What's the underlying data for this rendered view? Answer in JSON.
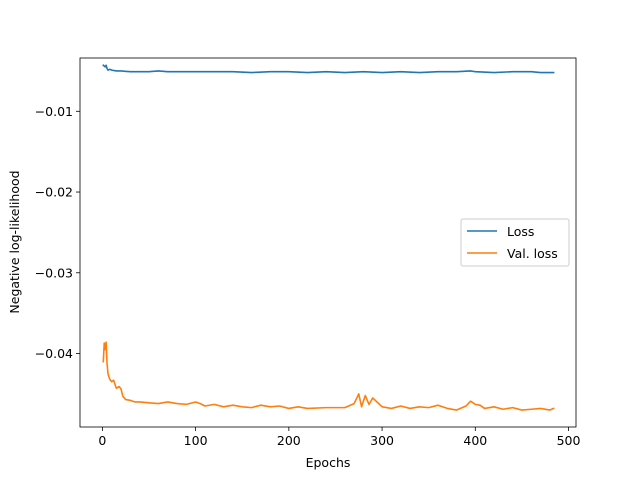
{
  "chart_data": {
    "type": "line",
    "title": "",
    "xlabel": "Epochs",
    "ylabel": "Negative log-likelihood",
    "xlim": [
      -24,
      508
    ],
    "ylim": [
      -0.0491,
      -0.0034
    ],
    "x_ticks": [
      0,
      100,
      200,
      300,
      400,
      500
    ],
    "x_tick_labels": [
      "0",
      "100",
      "200",
      "300",
      "400",
      "500"
    ],
    "y_ticks": [
      -0.01,
      -0.02,
      -0.03,
      -0.04
    ],
    "y_tick_labels": [
      "−0.01",
      "−0.02",
      "−0.03",
      "−0.04"
    ],
    "grid": false,
    "legend_position": "center-right",
    "series": [
      {
        "name": "Loss",
        "color": "#1f77b4",
        "x": [
          1,
          3,
          4,
          5,
          6,
          8,
          10,
          15,
          20,
          30,
          40,
          50,
          60,
          70,
          80,
          90,
          100,
          120,
          140,
          160,
          180,
          200,
          220,
          240,
          260,
          280,
          300,
          320,
          340,
          360,
          380,
          395,
          400,
          420,
          440,
          460,
          470,
          484
        ],
        "y": [
          -0.0043,
          -0.0045,
          -0.0043,
          -0.0047,
          -0.0049,
          -0.0048,
          -0.0049,
          -0.005,
          -0.005,
          -0.0051,
          -0.0051,
          -0.0051,
          -0.005,
          -0.0051,
          -0.0051,
          -0.0051,
          -0.0051,
          -0.0051,
          -0.0051,
          -0.0052,
          -0.0051,
          -0.0051,
          -0.0052,
          -0.0051,
          -0.0052,
          -0.0051,
          -0.0052,
          -0.0051,
          -0.0052,
          -0.0051,
          -0.0051,
          -0.005,
          -0.0051,
          -0.0052,
          -0.0051,
          -0.0051,
          -0.0052,
          -0.0052
        ]
      },
      {
        "name": "Val. loss",
        "color": "#ff7f0e",
        "x": [
          1,
          2,
          3,
          4,
          5,
          6,
          8,
          10,
          12,
          15,
          18,
          20,
          22,
          25,
          30,
          35,
          40,
          50,
          60,
          70,
          80,
          90,
          100,
          105,
          110,
          120,
          130,
          140,
          150,
          160,
          170,
          180,
          190,
          200,
          210,
          220,
          240,
          260,
          270,
          275,
          278,
          282,
          286,
          290,
          300,
          310,
          320,
          330,
          340,
          350,
          360,
          370,
          380,
          390,
          395,
          400,
          405,
          410,
          420,
          430,
          440,
          450,
          460,
          470,
          480,
          484
        ],
        "y": [
          -0.041,
          -0.0387,
          -0.0395,
          -0.0386,
          -0.0412,
          -0.0425,
          -0.0432,
          -0.0435,
          -0.0433,
          -0.0443,
          -0.0441,
          -0.0444,
          -0.0453,
          -0.0457,
          -0.0458,
          -0.046,
          -0.046,
          -0.0461,
          -0.0462,
          -0.046,
          -0.0462,
          -0.0463,
          -0.046,
          -0.0462,
          -0.0465,
          -0.0463,
          -0.0466,
          -0.0464,
          -0.0466,
          -0.0467,
          -0.0464,
          -0.0466,
          -0.0465,
          -0.0468,
          -0.0466,
          -0.0468,
          -0.0467,
          -0.0467,
          -0.0462,
          -0.045,
          -0.0466,
          -0.0452,
          -0.0463,
          -0.0455,
          -0.0466,
          -0.0468,
          -0.0465,
          -0.0468,
          -0.0466,
          -0.0467,
          -0.0464,
          -0.0468,
          -0.047,
          -0.0465,
          -0.0459,
          -0.0463,
          -0.0464,
          -0.0468,
          -0.0466,
          -0.0469,
          -0.0467,
          -0.047,
          -0.0469,
          -0.0468,
          -0.047,
          -0.0468
        ]
      }
    ]
  }
}
